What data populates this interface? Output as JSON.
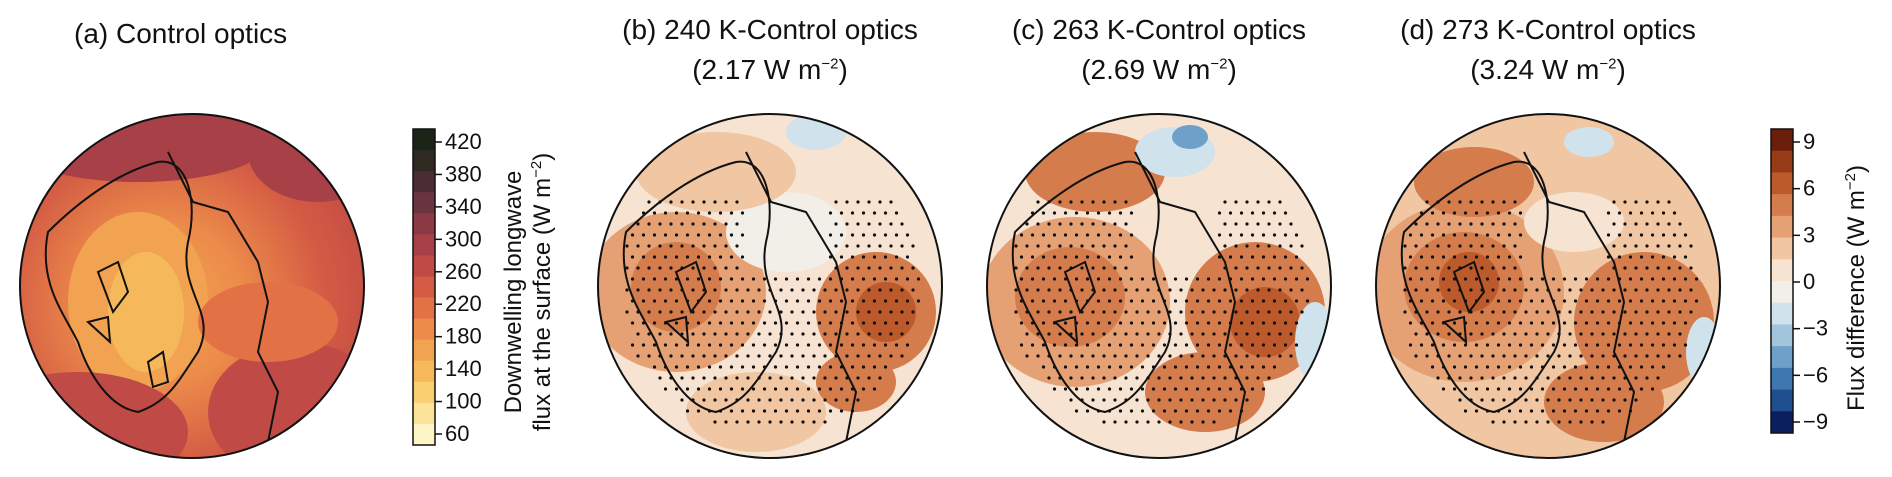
{
  "panels": [
    {
      "id": "a",
      "title": "(a) Control optics",
      "subtitle": ""
    },
    {
      "id": "b",
      "title": "(b) 240 K-Control optics",
      "subtitle_value": "(2.17 W m",
      "subtitle_exp": "−2",
      "subtitle_end": ")"
    },
    {
      "id": "c",
      "title": "(c) 263 K-Control optics",
      "subtitle_value": "(2.69 W m",
      "subtitle_exp": "−2",
      "subtitle_end": ")"
    },
    {
      "id": "d",
      "title": "(d) 273 K-Control optics",
      "subtitle_value": "(3.24 W m",
      "subtitle_exp": "−2",
      "subtitle_end": ")"
    }
  ],
  "colorbar_flux": {
    "ticks": [
      "420",
      "380",
      "340",
      "300",
      "260",
      "220",
      "180",
      "140",
      "100",
      "60"
    ],
    "label_line1": "Downwelling longwave",
    "label_line2_pre": "flux at the surface (W m",
    "label_exp": "−2",
    "label_end": ")",
    "colors": [
      "#fdf5c6",
      "#fbe39a",
      "#f9cf72",
      "#f5b95c",
      "#f2a351",
      "#ec8b4a",
      "#e27246",
      "#d45c44",
      "#c04a45",
      "#a84047",
      "#8a3945",
      "#6a3340",
      "#4b2c33",
      "#2e2a22",
      "#1b2416"
    ]
  },
  "colorbar_diff": {
    "ticks": [
      "9",
      "6",
      "3",
      "0",
      "−3",
      "−6",
      "−9"
    ],
    "label_pre": "Flux difference (W m",
    "label_exp": "−2",
    "label_end": ")",
    "colors": [
      "#0a1f5c",
      "#1f4f8f",
      "#3f78b0",
      "#6fa0c8",
      "#a3c5dc",
      "#d0e2ec",
      "#f2efe9",
      "#f6e3d2",
      "#f0c6a3",
      "#e5a173",
      "#d47c4c",
      "#bc5a2c",
      "#973c17",
      "#6b1e0b"
    ]
  }
}
